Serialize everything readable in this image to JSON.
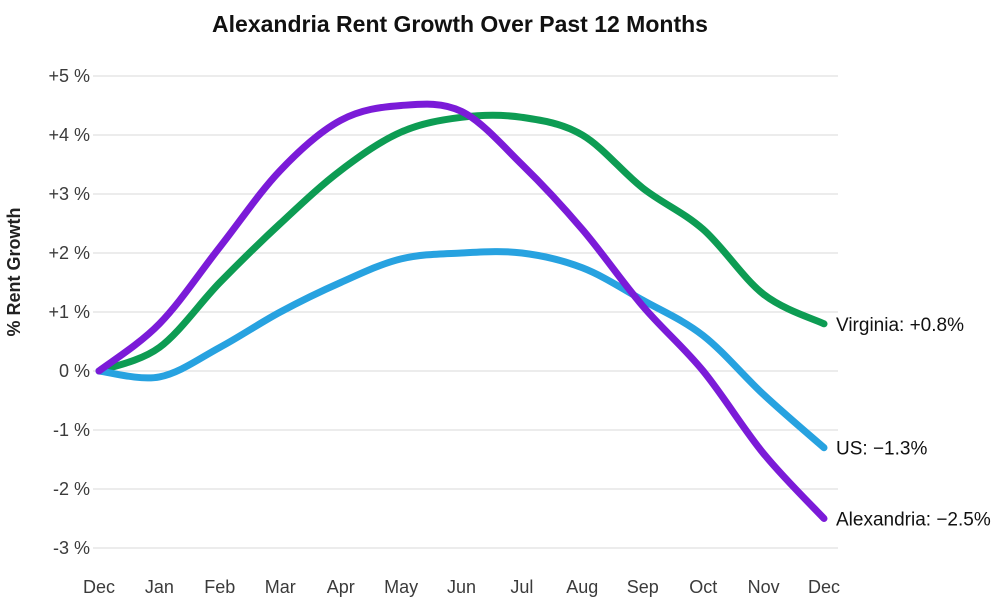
{
  "chart_data": {
    "type": "line",
    "title": "Alexandria Rent Growth Over Past 12 Months",
    "ylabel": "% Rent Growth",
    "xlabel": "",
    "x_categories": [
      "Dec",
      "Jan",
      "Feb",
      "Mar",
      "Apr",
      "May",
      "Jun",
      "Jul",
      "Aug",
      "Sep",
      "Oct",
      "Nov",
      "Dec"
    ],
    "y_ticks": [
      "+5 %",
      "+4 %",
      "+3 %",
      "+2 %",
      "+1 %",
      "0 %",
      "-1 %",
      "-2 %",
      "-3 %"
    ],
    "y_tick_values": [
      5,
      4,
      3,
      2,
      1,
      0,
      -1,
      -2,
      -3
    ],
    "ylim": [
      -3,
      5
    ],
    "grid": true,
    "legend_position": "right-end-annotations",
    "series": [
      {
        "name": "Alexandria",
        "color": "#7B1BD8",
        "end_label": "Alexandria: −2.5%",
        "end_value": -2.5,
        "values": [
          0,
          0.8,
          2.1,
          3.4,
          4.25,
          4.5,
          4.4,
          3.5,
          2.4,
          1.1,
          0,
          -1.4,
          -2.5
        ]
      },
      {
        "name": "Virginia",
        "color": "#0D9C53",
        "end_label": "Virginia: +0.8%",
        "end_value": 0.8,
        "values": [
          0,
          0.4,
          1.5,
          2.5,
          3.4,
          4.05,
          4.3,
          4.3,
          4.0,
          3.1,
          2.4,
          1.3,
          0.8
        ]
      },
      {
        "name": "US",
        "color": "#27A2E0",
        "end_label": "US: −1.3%",
        "end_value": -1.3,
        "values": [
          0,
          -0.1,
          0.4,
          1.0,
          1.5,
          1.9,
          2.0,
          2.0,
          1.75,
          1.2,
          0.6,
          -0.4,
          -1.3
        ]
      }
    ],
    "draw_order": [
      "Virginia",
      "US",
      "Alexandria"
    ]
  },
  "colors": {
    "background": "#ffffff",
    "grid": "#e1e1e1",
    "tick_text": "#3b3b3b",
    "title_text": "#111111",
    "annotation_text": "#111111"
  }
}
